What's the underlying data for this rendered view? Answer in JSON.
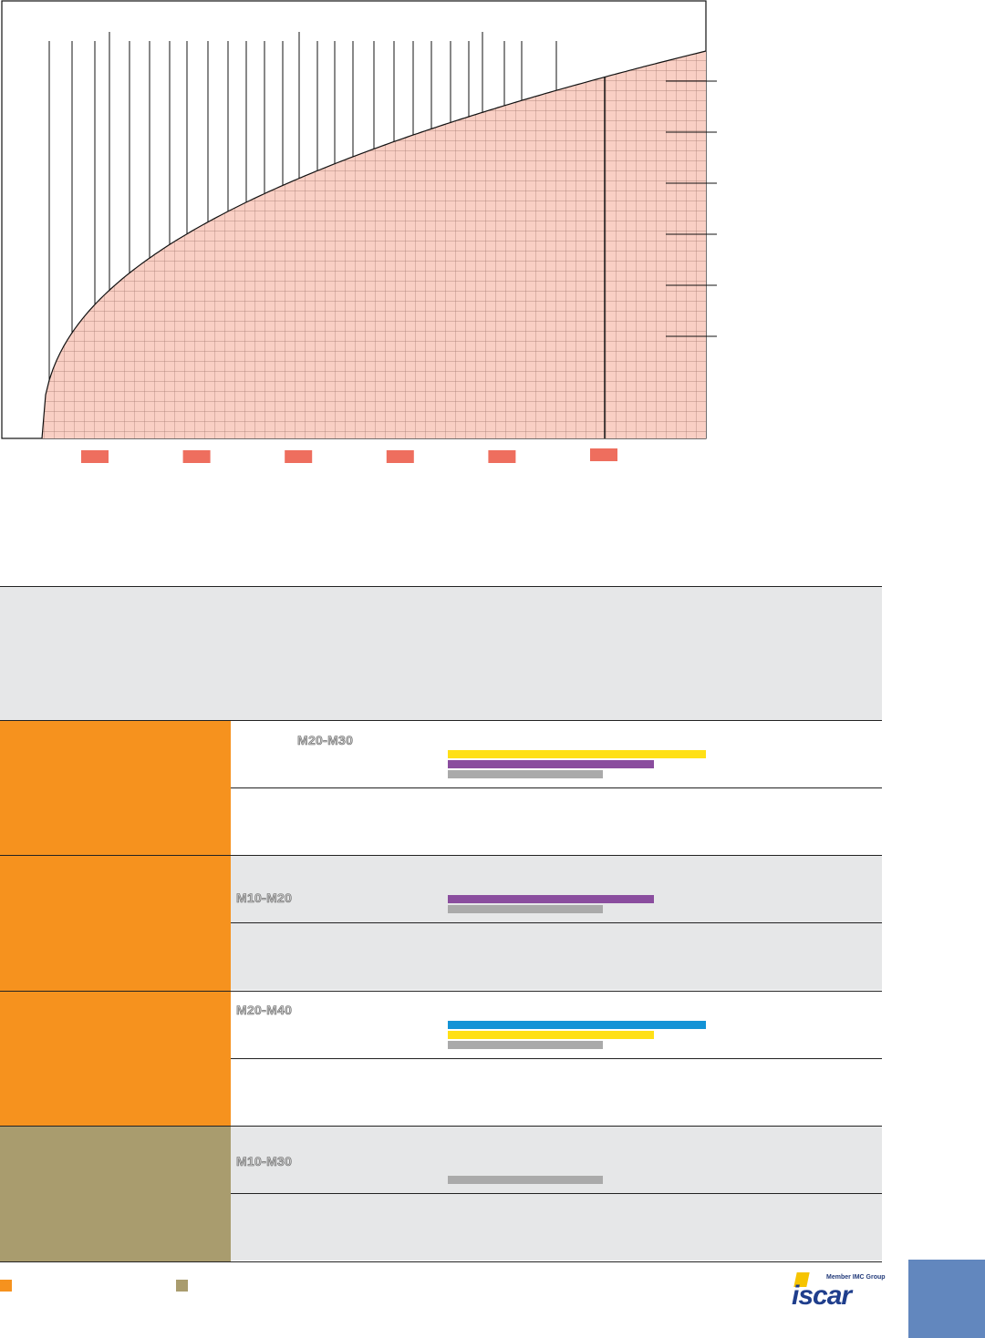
{
  "colors": {
    "orange": "#f6921e",
    "khaki": "#a99c6e",
    "yellow": "#ffe016",
    "purple": "#8a4d9e",
    "blue": "#1393d6",
    "grey": "#aaaaaa",
    "curve_fill": "#f9cfc4",
    "marker": "#ee6e5e",
    "row_bg": "#e6e7e8",
    "page_tab": "#6287be"
  },
  "chart": {
    "markers": 6,
    "right_ticks": 6
  },
  "rows": [
    {
      "category_color": "orange",
      "top": {
        "grade": "M20-M30",
        "grade_pos": "indented",
        "bars": [
          {
            "color": "yellow",
            "level": 1.0
          },
          {
            "color": "purple",
            "level": 0.8
          },
          {
            "color": "grey",
            "level": 0.6
          }
        ]
      },
      "bottom_shaded": false,
      "top_shaded": false
    },
    {
      "category_color": "orange",
      "top": {
        "grade": "M10-M20",
        "grade_pos": "low",
        "bars": [
          {
            "color": "purple",
            "level": 0.8
          },
          {
            "color": "grey",
            "level": 0.6
          }
        ]
      },
      "bottom_shaded": true,
      "top_shaded": true
    },
    {
      "category_color": "orange",
      "top": {
        "grade": "M20-M40",
        "grade_pos": "high",
        "bars": [
          {
            "color": "blue",
            "level": 1.0
          },
          {
            "color": "yellow",
            "level": 0.8
          },
          {
            "color": "grey",
            "level": 0.6
          }
        ]
      },
      "bottom_shaded": false,
      "top_shaded": false
    },
    {
      "category_color": "khaki",
      "top": {
        "grade": "M10-M30",
        "grade_pos": "mid",
        "bars": [
          {
            "color": "grey",
            "level": 0.6
          }
        ]
      },
      "bottom_shaded": true,
      "top_shaded": true
    }
  ],
  "legend": [
    {
      "color": "orange"
    },
    {
      "color": "khaki"
    }
  ],
  "logo": {
    "tagline": "Member IMC Group",
    "wordmark": "iscar"
  }
}
